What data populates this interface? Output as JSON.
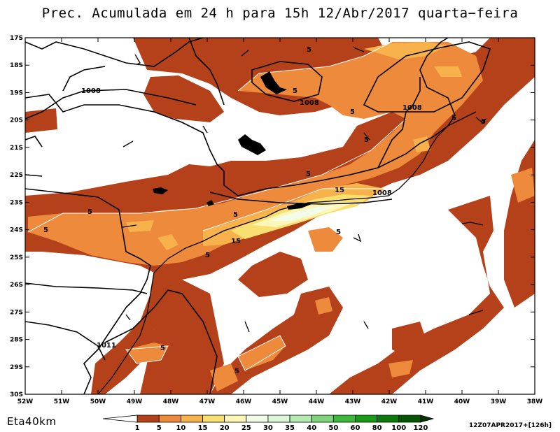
{
  "title": "Prec. Acumulada em 24 h para 15h 12/Abr/2017 quarta−feira",
  "model_label": "Eta40km",
  "run_label": "12Z07APR2017+[126h]",
  "lat_labels": [
    "17S",
    "18S",
    "19S",
    "20S",
    "21S",
    "22S",
    "23S",
    "24S",
    "25S",
    "26S",
    "27S",
    "28S",
    "29S",
    "30S"
  ],
  "lon_labels": [
    "52W",
    "51W",
    "50W",
    "49W",
    "48W",
    "47W",
    "46W",
    "45W",
    "44W",
    "43W",
    "42W",
    "41W",
    "40W",
    "39W",
    "38W"
  ],
  "precip_contour_labels": [
    "5",
    "5",
    "5",
    "5",
    "5",
    "5",
    "5",
    "5",
    "5",
    "5",
    "5",
    "15",
    "15"
  ],
  "pressure_contour_labels": [
    "1008",
    "1008",
    "1008",
    "1008",
    "1011"
  ],
  "colorbar": {
    "labels": [
      "1",
      "5",
      "10",
      "15",
      "20",
      "25",
      "30",
      "35",
      "40",
      "50",
      "60",
      "80",
      "100",
      "120"
    ],
    "colors": [
      "#ffffff",
      "#b5411a",
      "#ed8a3c",
      "#f7b24c",
      "#f8df72",
      "#fdf6b7",
      "#f2fde9",
      "#dbf7d8",
      "#b4ecb0",
      "#7fd57c",
      "#3db83b",
      "#199a19",
      "#0b7a0b",
      "#055505",
      "#033303"
    ]
  }
}
